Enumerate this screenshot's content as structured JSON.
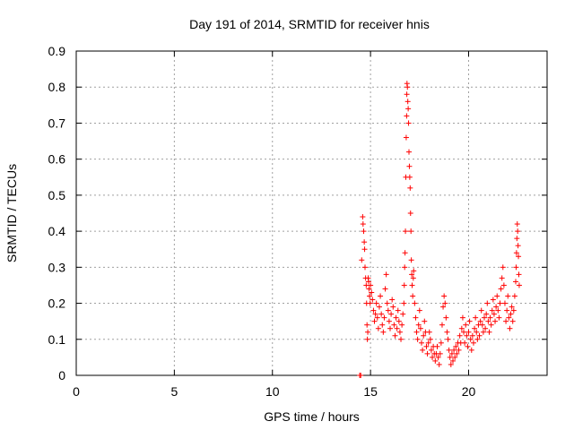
{
  "chart_data": {
    "type": "scatter",
    "title": "Day 191 of 2014, SRMTID for receiver hnis",
    "xlabel": "GPS time / hours",
    "ylabel": "SRMTID / TECUs",
    "xlim": [
      0,
      24
    ],
    "ylim": [
      0,
      0.9
    ],
    "xticks": [
      0,
      5,
      10,
      15,
      20
    ],
    "yticks": [
      0,
      0.1,
      0.2,
      0.3,
      0.4,
      0.5,
      0.6,
      0.7,
      0.8,
      0.9
    ],
    "xtick_labels": [
      "0",
      "5",
      "10",
      "15",
      "20"
    ],
    "ytick_labels": [
      "0",
      "0.1",
      "0.2",
      "0.3",
      "0.4",
      "0.5",
      "0.6",
      "0.7",
      "0.8",
      "0.9"
    ],
    "grid": true,
    "marker": "plus",
    "color": "#ff0000",
    "series": [
      {
        "name": "SRMTID",
        "points": [
          [
            14.45,
            0.0
          ],
          [
            14.5,
            0.0
          ],
          [
            14.55,
            0.32
          ],
          [
            14.6,
            0.44
          ],
          [
            14.62,
            0.42
          ],
          [
            14.65,
            0.4
          ],
          [
            14.68,
            0.37
          ],
          [
            14.7,
            0.35
          ],
          [
            14.72,
            0.3
          ],
          [
            14.75,
            0.27
          ],
          [
            14.78,
            0.25
          ],
          [
            14.8,
            0.2
          ],
          [
            14.82,
            0.14
          ],
          [
            14.84,
            0.1
          ],
          [
            14.86,
            0.12
          ],
          [
            14.88,
            0.27
          ],
          [
            14.9,
            0.26
          ],
          [
            14.92,
            0.24
          ],
          [
            14.95,
            0.22
          ],
          [
            14.98,
            0.2
          ],
          [
            15.0,
            0.25
          ],
          [
            15.05,
            0.23
          ],
          [
            15.1,
            0.21
          ],
          [
            15.15,
            0.18
          ],
          [
            15.2,
            0.15
          ],
          [
            15.25,
            0.17
          ],
          [
            15.3,
            0.2
          ],
          [
            15.35,
            0.16
          ],
          [
            15.4,
            0.13
          ],
          [
            15.45,
            0.19
          ],
          [
            15.5,
            0.22
          ],
          [
            15.55,
            0.17
          ],
          [
            15.6,
            0.14
          ],
          [
            15.65,
            0.12
          ],
          [
            15.7,
            0.16
          ],
          [
            15.75,
            0.24
          ],
          [
            15.8,
            0.28
          ],
          [
            15.85,
            0.2
          ],
          [
            15.9,
            0.18
          ],
          [
            15.95,
            0.15
          ],
          [
            16.0,
            0.13
          ],
          [
            16.05,
            0.17
          ],
          [
            16.1,
            0.21
          ],
          [
            16.15,
            0.19
          ],
          [
            16.2,
            0.14
          ],
          [
            16.25,
            0.11
          ],
          [
            16.3,
            0.16
          ],
          [
            16.35,
            0.13
          ],
          [
            16.4,
            0.18
          ],
          [
            16.45,
            0.15
          ],
          [
            16.5,
            0.12
          ],
          [
            16.55,
            0.1
          ],
          [
            16.6,
            0.14
          ],
          [
            16.65,
            0.17
          ],
          [
            16.7,
            0.2
          ],
          [
            16.72,
            0.25
          ],
          [
            16.74,
            0.3
          ],
          [
            16.76,
            0.34
          ],
          [
            16.78,
            0.4
          ],
          [
            16.8,
            0.55
          ],
          [
            16.82,
            0.66
          ],
          [
            16.84,
            0.72
          ],
          [
            16.85,
            0.78
          ],
          [
            16.86,
            0.81
          ],
          [
            16.88,
            0.8
          ],
          [
            16.9,
            0.76
          ],
          [
            16.92,
            0.74
          ],
          [
            16.94,
            0.7
          ],
          [
            16.96,
            0.62
          ],
          [
            16.98,
            0.58
          ],
          [
            17.0,
            0.55
          ],
          [
            17.02,
            0.52
          ],
          [
            17.04,
            0.45
          ],
          [
            17.06,
            0.4
          ],
          [
            17.08,
            0.32
          ],
          [
            17.1,
            0.28
          ],
          [
            17.12,
            0.25
          ],
          [
            17.15,
            0.22
          ],
          [
            17.18,
            0.27
          ],
          [
            17.2,
            0.29
          ],
          [
            17.25,
            0.2
          ],
          [
            17.3,
            0.16
          ],
          [
            17.35,
            0.12
          ],
          [
            17.4,
            0.1
          ],
          [
            17.45,
            0.14
          ],
          [
            17.5,
            0.18
          ],
          [
            17.55,
            0.13
          ],
          [
            17.6,
            0.09
          ],
          [
            17.65,
            0.07
          ],
          [
            17.7,
            0.11
          ],
          [
            17.75,
            0.15
          ],
          [
            17.8,
            0.12
          ],
          [
            17.85,
            0.08
          ],
          [
            17.9,
            0.06
          ],
          [
            17.95,
            0.09
          ],
          [
            18.0,
            0.12
          ],
          [
            18.05,
            0.1
          ],
          [
            18.1,
            0.07
          ],
          [
            18.15,
            0.05
          ],
          [
            18.2,
            0.08
          ],
          [
            18.25,
            0.06
          ],
          [
            18.3,
            0.04
          ],
          [
            18.35,
            0.06
          ],
          [
            18.4,
            0.08
          ],
          [
            18.45,
            0.05
          ],
          [
            18.5,
            0.03
          ],
          [
            18.55,
            0.06
          ],
          [
            18.6,
            0.09
          ],
          [
            18.65,
            0.14
          ],
          [
            18.7,
            0.19
          ],
          [
            18.75,
            0.22
          ],
          [
            18.8,
            0.2
          ],
          [
            18.85,
            0.16
          ],
          [
            18.9,
            0.12
          ],
          [
            18.95,
            0.1
          ],
          [
            19.0,
            0.07
          ],
          [
            19.05,
            0.05
          ],
          [
            19.1,
            0.03
          ],
          [
            19.15,
            0.06
          ],
          [
            19.2,
            0.04
          ],
          [
            19.25,
            0.07
          ],
          [
            19.3,
            0.05
          ],
          [
            19.35,
            0.08
          ],
          [
            19.4,
            0.06
          ],
          [
            19.45,
            0.09
          ],
          [
            19.5,
            0.07
          ],
          [
            19.55,
            0.11
          ],
          [
            19.6,
            0.09
          ],
          [
            19.65,
            0.13
          ],
          [
            19.7,
            0.16
          ],
          [
            19.75,
            0.12
          ],
          [
            19.8,
            0.09
          ],
          [
            19.85,
            0.14
          ],
          [
            19.9,
            0.11
          ],
          [
            19.95,
            0.08
          ],
          [
            20.0,
            0.12
          ],
          [
            20.05,
            0.15
          ],
          [
            20.1,
            0.1
          ],
          [
            20.15,
            0.07
          ],
          [
            20.2,
            0.11
          ],
          [
            20.25,
            0.09
          ],
          [
            20.3,
            0.13
          ],
          [
            20.35,
            0.16
          ],
          [
            20.4,
            0.12
          ],
          [
            20.45,
            0.1
          ],
          [
            20.5,
            0.14
          ],
          [
            20.55,
            0.11
          ],
          [
            20.6,
            0.15
          ],
          [
            20.65,
            0.18
          ],
          [
            20.7,
            0.14
          ],
          [
            20.75,
            0.12
          ],
          [
            20.8,
            0.16
          ],
          [
            20.85,
            0.13
          ],
          [
            20.9,
            0.17
          ],
          [
            20.95,
            0.2
          ],
          [
            21.0,
            0.15
          ],
          [
            21.05,
            0.12
          ],
          [
            21.1,
            0.16
          ],
          [
            21.15,
            0.14
          ],
          [
            21.2,
            0.18
          ],
          [
            21.25,
            0.21
          ],
          [
            21.3,
            0.17
          ],
          [
            21.35,
            0.15
          ],
          [
            21.4,
            0.19
          ],
          [
            21.45,
            0.22
          ],
          [
            21.5,
            0.18
          ],
          [
            21.55,
            0.16
          ],
          [
            21.6,
            0.2
          ],
          [
            21.65,
            0.24
          ],
          [
            21.7,
            0.27
          ],
          [
            21.75,
            0.3
          ],
          [
            21.8,
            0.25
          ],
          [
            21.85,
            0.2
          ],
          [
            21.9,
            0.15
          ],
          [
            21.95,
            0.18
          ],
          [
            22.0,
            0.22
          ],
          [
            22.05,
            0.16
          ],
          [
            22.1,
            0.13
          ],
          [
            22.15,
            0.17
          ],
          [
            22.2,
            0.19
          ],
          [
            22.25,
            0.15
          ],
          [
            22.3,
            0.18
          ],
          [
            22.35,
            0.22
          ],
          [
            22.4,
            0.26
          ],
          [
            22.42,
            0.3
          ],
          [
            22.44,
            0.34
          ],
          [
            22.46,
            0.38
          ],
          [
            22.48,
            0.42
          ],
          [
            22.5,
            0.4
          ],
          [
            22.52,
            0.36
          ],
          [
            22.54,
            0.33
          ],
          [
            22.56,
            0.28
          ],
          [
            22.58,
            0.25
          ]
        ]
      }
    ]
  }
}
